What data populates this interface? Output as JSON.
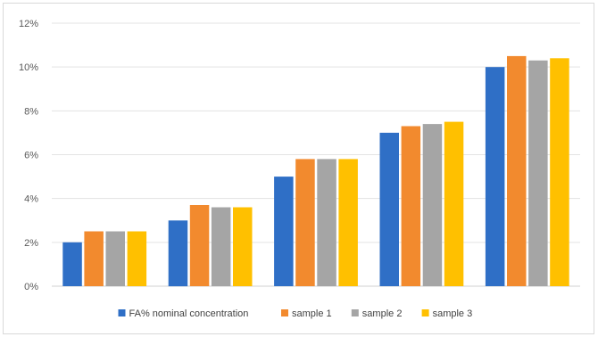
{
  "chart_data": {
    "type": "bar",
    "title": "",
    "xlabel": "",
    "ylabel": "",
    "categories": [
      "",
      "",
      "",
      "",
      ""
    ],
    "ylim": [
      0,
      0.12
    ],
    "y_ticks": [
      "0%",
      "2%",
      "4%",
      "6%",
      "8%",
      "10%",
      "12%"
    ],
    "y_tick_values": [
      0,
      0.02,
      0.04,
      0.06,
      0.08,
      0.1,
      0.12
    ],
    "grid": true,
    "legend_position": "bottom",
    "series": [
      {
        "name": "FA% nominal concentration",
        "color": "#2F6FC6",
        "values": [
          0.02,
          0.03,
          0.05,
          0.07,
          0.1
        ]
      },
      {
        "name": "sample 1",
        "color": "#F28A2E",
        "values": [
          0.025,
          0.037,
          0.058,
          0.073,
          0.105
        ]
      },
      {
        "name": "sample 2",
        "color": "#A5A5A5",
        "values": [
          0.025,
          0.036,
          0.058,
          0.074,
          0.103
        ]
      },
      {
        "name": "sample 3",
        "color": "#FFC000",
        "values": [
          0.025,
          0.036,
          0.058,
          0.075,
          0.104
        ]
      }
    ]
  }
}
